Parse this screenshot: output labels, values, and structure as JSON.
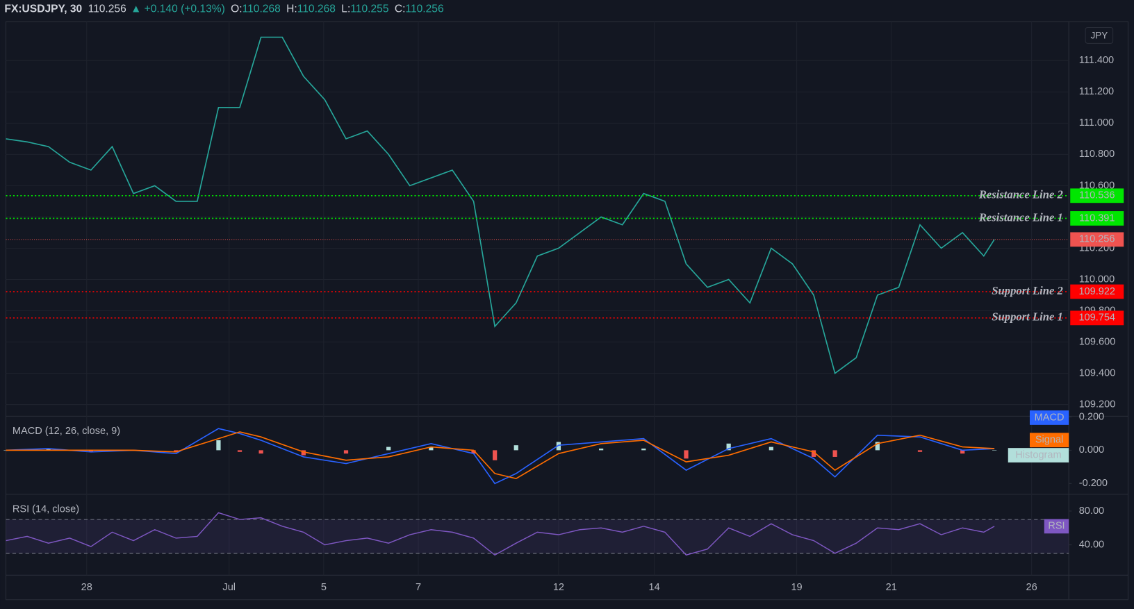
{
  "header": {
    "symbol": "FX:USDJPY, 30",
    "last": "110.256",
    "arrow": "▲",
    "change": "+0.140 (+0.13%)",
    "ohlc": [
      {
        "label": "O:",
        "value": "110.268"
      },
      {
        "label": "H:",
        "value": "110.268"
      },
      {
        "label": "L:",
        "value": "110.255"
      },
      {
        "label": "C:",
        "value": "110.256"
      }
    ]
  },
  "currency": "JPY",
  "chart_data": [
    {
      "type": "line",
      "x": [
        0,
        2,
        4,
        6,
        8,
        10,
        12,
        14,
        16,
        18,
        20,
        22,
        24,
        26,
        28,
        30,
        32,
        34,
        36,
        38,
        40,
        42,
        44,
        46,
        48,
        50,
        52,
        54,
        56,
        58,
        60,
        62,
        64,
        66,
        68,
        70,
        72,
        74,
        76,
        78,
        80,
        82,
        84,
        86,
        88,
        90,
        92,
        93
      ],
      "values": [
        110.9,
        110.88,
        110.85,
        110.75,
        110.7,
        110.85,
        110.55,
        110.6,
        110.5,
        110.5,
        111.1,
        111.1,
        111.55,
        111.55,
        111.3,
        111.15,
        110.9,
        110.95,
        110.8,
        110.6,
        110.65,
        110.7,
        110.5,
        109.7,
        109.85,
        110.15,
        110.2,
        110.3,
        110.4,
        110.35,
        110.55,
        110.5,
        110.1,
        109.95,
        110.0,
        109.85,
        110.2,
        110.1,
        109.9,
        109.4,
        109.5,
        109.9,
        109.95,
        110.35,
        110.2,
        110.3,
        110.15,
        110.256
      ],
      "color": "#26a69a",
      "xlim": [
        0,
        100
      ],
      "xticks": [
        {
          "value": 7.6,
          "label": "28"
        },
        {
          "value": 21,
          "label": "Jul"
        },
        {
          "value": 29.9,
          "label": "5"
        },
        {
          "value": 38.8,
          "label": "7"
        },
        {
          "value": 52,
          "label": "12"
        },
        {
          "value": 61,
          "label": "14"
        },
        {
          "value": 74.4,
          "label": "19"
        },
        {
          "value": 83.3,
          "label": "21"
        },
        {
          "value": 96.5,
          "label": "26"
        }
      ],
      "ylim": [
        109.13,
        111.64
      ],
      "yticks": [
        {
          "value": 109.2,
          "label": "109.200"
        },
        {
          "value": 109.4,
          "label": "109.400"
        },
        {
          "value": 109.6,
          "label": "109.600"
        },
        {
          "value": 109.8,
          "label": "109.800"
        },
        {
          "value": 110.0,
          "label": "110.000"
        },
        {
          "value": 110.2,
          "label": "110.200"
        },
        {
          "value": 110.4,
          "label": "110.400"
        },
        {
          "value": 110.6,
          "label": "110.600"
        },
        {
          "value": 110.8,
          "label": "110.800"
        },
        {
          "value": 111.0,
          "label": "111.000"
        },
        {
          "value": 111.2,
          "label": "111.200"
        },
        {
          "value": 111.4,
          "label": "111.400"
        }
      ],
      "grid": true,
      "levels": [
        {
          "name": "Resistance Line 2",
          "value": 110.536,
          "color": "#00e600"
        },
        {
          "name": "Resistance Line 1",
          "value": 110.391,
          "color": "#00e600"
        },
        {
          "name": "Support Line 2",
          "value": 109.922,
          "color": "#ff0000"
        },
        {
          "name": "Support Line 1",
          "value": 109.754,
          "color": "#ff0000"
        }
      ],
      "last_price": {
        "value": 110.256,
        "color": "#ef5350"
      }
    },
    {
      "type": "macd",
      "title": "MACD (12, 26, close, 9)",
      "x": [
        0,
        4,
        8,
        12,
        16,
        20,
        22,
        24,
        28,
        32,
        36,
        40,
        44,
        46,
        48,
        52,
        56,
        60,
        64,
        68,
        72,
        76,
        78,
        82,
        86,
        90,
        93
      ],
      "series": [
        {
          "name": "MACD",
          "color": "#2962ff",
          "values": [
            0.0,
            0.01,
            -0.01,
            0.0,
            -0.02,
            0.13,
            0.1,
            0.06,
            -0.04,
            -0.08,
            -0.02,
            0.04,
            -0.02,
            -0.2,
            -0.14,
            0.03,
            0.05,
            0.07,
            -0.12,
            0.01,
            0.07,
            -0.05,
            -0.16,
            0.09,
            0.08,
            0.0,
            0.01
          ]
        },
        {
          "name": "Signal",
          "color": "#ff6d00",
          "values": [
            0.0,
            0.0,
            0.0,
            0.0,
            -0.01,
            0.07,
            0.11,
            0.08,
            -0.01,
            -0.06,
            -0.04,
            0.02,
            0.0,
            -0.14,
            -0.17,
            -0.02,
            0.04,
            0.06,
            -0.07,
            -0.03,
            0.05,
            -0.01,
            -0.12,
            0.04,
            0.09,
            0.02,
            0.01
          ]
        },
        {
          "name": "Histogram",
          "color": "#b2dfdb",
          "negative_color": "#ef5350",
          "values": [
            0.0,
            0.01,
            -0.01,
            0.0,
            -0.01,
            0.06,
            -0.01,
            -0.02,
            -0.03,
            -0.02,
            0.02,
            0.02,
            -0.02,
            -0.06,
            0.03,
            0.05,
            0.01,
            0.01,
            -0.05,
            0.04,
            0.02,
            -0.04,
            -0.04,
            0.05,
            -0.01,
            -0.02,
            0.0
          ]
        }
      ],
      "ylim": [
        -0.26,
        0.2
      ],
      "yticks": [
        {
          "value": 0.2,
          "label": "0.200"
        },
        {
          "value": 0,
          "label": "0.000"
        },
        {
          "value": -0.2,
          "label": "-0.200"
        }
      ]
    },
    {
      "type": "rsi",
      "title": "RSI (14, close)",
      "x": [
        0,
        2,
        4,
        6,
        8,
        10,
        12,
        14,
        16,
        18,
        20,
        22,
        24,
        26,
        28,
        30,
        32,
        34,
        36,
        38,
        40,
        42,
        44,
        46,
        48,
        50,
        52,
        54,
        56,
        58,
        60,
        62,
        64,
        66,
        68,
        70,
        72,
        74,
        76,
        78,
        80,
        82,
        84,
        86,
        88,
        90,
        92,
        93
      ],
      "series": [
        {
          "name": "RSI",
          "color": "#7e57c2",
          "values": [
            45,
            50,
            42,
            48,
            38,
            55,
            45,
            58,
            48,
            50,
            78,
            70,
            72,
            62,
            55,
            40,
            45,
            48,
            42,
            52,
            58,
            55,
            48,
            28,
            42,
            55,
            52,
            58,
            60,
            55,
            62,
            55,
            28,
            35,
            60,
            50,
            65,
            52,
            45,
            30,
            42,
            60,
            58,
            65,
            52,
            60,
            55,
            62
          ]
        }
      ],
      "ylim": [
        5,
        99
      ],
      "yticks": [
        {
          "value": 40,
          "label": "40.00"
        },
        {
          "value": 80,
          "label": "80.00"
        }
      ],
      "bands": [
        30,
        70
      ]
    }
  ]
}
